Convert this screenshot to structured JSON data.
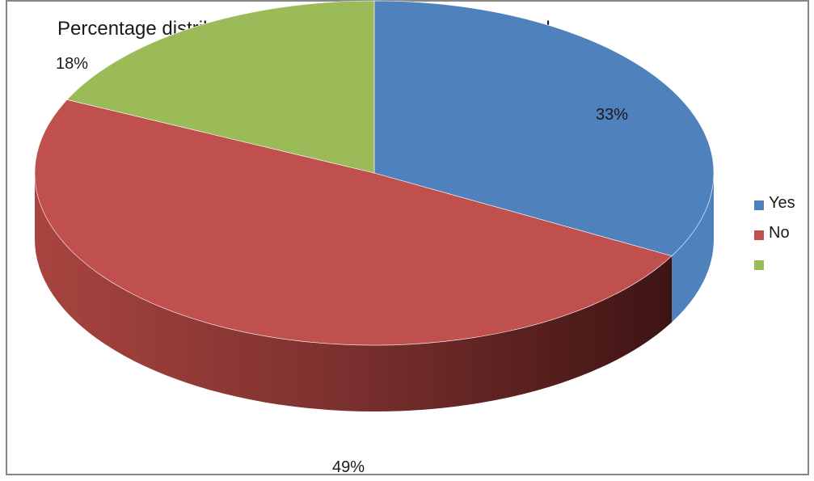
{
  "chart_data": {
    "type": "pie",
    "title": "Percentage distribution of respondents by education level",
    "categories": [
      "Yes",
      "No",
      ""
    ],
    "values": [
      33,
      49,
      18
    ],
    "data_labels": [
      "33%",
      "49%",
      "18%"
    ],
    "colors": [
      "#4f81bd",
      "#c0504d",
      "#9bbb59"
    ],
    "legend_position": "right",
    "style": "3d"
  }
}
